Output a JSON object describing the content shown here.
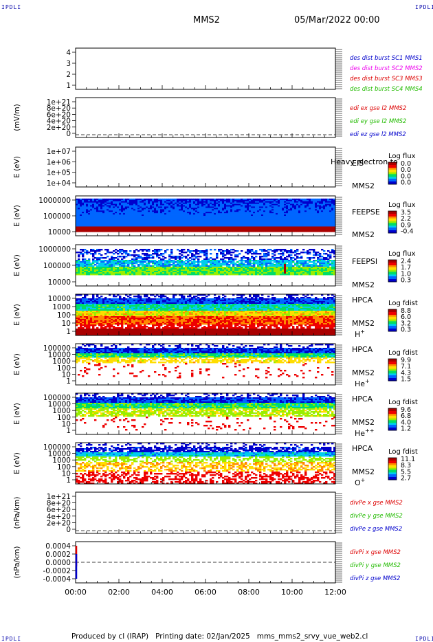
{
  "corners": {
    "top_left": "IPDLI",
    "top_right": "IPDLI",
    "bottom_left": "IPDLI",
    "bottom_right": "IPDLI"
  },
  "header": {
    "mission": "MMS2",
    "date": "05/Mar/2022 00:00"
  },
  "footer": {
    "produced_by": "Produced by cl (IRAP)",
    "printing_date": "Printing date: 02/Jan/2025",
    "script": "mms_mms2_srvy_vue_web2.cl"
  },
  "x_axis": {
    "ticks": [
      "00:00",
      "02:00",
      "04:00",
      "06:00",
      "08:00",
      "10:00",
      "12:00"
    ]
  },
  "colors": {
    "blue": "#0000cc",
    "magenta": "#ee00ee",
    "red": "#dd0000",
    "green": "#22bb00",
    "rainbow": [
      "#0000cc",
      "#0066ff",
      "#00ccee",
      "#00dd66",
      "#99ee00",
      "#ffdd00",
      "#ff8800",
      "#ee0000",
      "#aa0000"
    ]
  },
  "chart_data": [
    {
      "type": "line",
      "id": "des",
      "yticks": [
        "4",
        "3",
        "2",
        "1"
      ],
      "ylabel": "",
      "legend": [
        {
          "label": "des dist burst SC1 MMS1",
          "color": "#0000cc"
        },
        {
          "label": "des dist burst SC2 MMS2",
          "color": "#ee00ee"
        },
        {
          "label": "des dist burst SC3 MMS3",
          "color": "#dd0000"
        },
        {
          "label": "des dist burst SC4 MMS4",
          "color": "#22bb00"
        }
      ],
      "series": []
    },
    {
      "type": "line",
      "id": "edi",
      "yticks": [
        "1e+21",
        "8e+20",
        "6e+20",
        "4e+20",
        "2e+20",
        "0"
      ],
      "ylabel": "(mV/m)",
      "zero_line": true,
      "legend": [
        {
          "label": "edi ex gse l2 MMS2",
          "color": "#dd0000"
        },
        {
          "label": "edi ey gse l2 MMS2",
          "color": "#22bb00"
        },
        {
          "label": "edi ez gse l2 MMS2",
          "color": "#0000cc"
        }
      ],
      "series": []
    },
    {
      "type": "heatmap",
      "id": "eis",
      "yticks": [
        "1e+07",
        "1e+06",
        "1e+05",
        "1e+04"
      ],
      "ylabel": "E (eV)",
      "instrument": "EIS",
      "spacecraft": "MMS2",
      "species": "",
      "overlay_text": "Heavy electron to",
      "cbar_title": "Log flux",
      "cbar_ticks": [
        "0.0",
        "0.0",
        "0.0",
        "0.0"
      ],
      "pattern": "empty"
    },
    {
      "type": "heatmap",
      "id": "feepse",
      "yticks": [
        "1000000",
        "100000",
        "10000"
      ],
      "ylabel": "E (eV)",
      "instrument": "FEEPSE",
      "spacecraft": "MMS2",
      "species": "",
      "cbar_title": "Log flux",
      "cbar_ticks": [
        "3.5",
        "2.2",
        "0.9",
        "-0.4"
      ],
      "pattern": "feepse"
    },
    {
      "type": "heatmap",
      "id": "feepsi",
      "yticks": [
        "1000000",
        "100000",
        "10000"
      ],
      "ylabel": "E (eV)",
      "instrument": "FEEPSI",
      "spacecraft": "MMS2",
      "species": "",
      "cbar_title": "Log flux",
      "cbar_ticks": [
        "2.4",
        "1.7",
        "1.0",
        "0.3"
      ],
      "pattern": "feepsi"
    },
    {
      "type": "heatmap",
      "id": "hpca-h",
      "yticks": [
        "10000",
        "1000",
        "100",
        "10",
        "1"
      ],
      "ylabel": "E (eV)",
      "instrument": "HPCA",
      "spacecraft": "MMS2",
      "species": "H",
      "species_charge": "+",
      "cbar_title": "Log fdist",
      "cbar_ticks": [
        "8.8",
        "6.0",
        "3.2",
        "0.3"
      ],
      "pattern": "hpca_h"
    },
    {
      "type": "heatmap",
      "id": "hpca-he",
      "yticks": [
        "100000",
        "10000",
        "1000",
        "100",
        "10",
        "1"
      ],
      "ylabel": "E (eV)",
      "instrument": "HPCA",
      "spacecraft": "MMS2",
      "species": "He",
      "species_charge": "+",
      "cbar_title": "Log fdist",
      "cbar_ticks": [
        "9.9",
        "7.1",
        "4.3",
        "1.5"
      ],
      "pattern": "hpca_he"
    },
    {
      "type": "heatmap",
      "id": "hpca-hepp",
      "yticks": [
        "100000",
        "10000",
        "1000",
        "100",
        "10",
        "1"
      ],
      "ylabel": "E (eV)",
      "instrument": "HPCA",
      "spacecraft": "MMS2",
      "species": "He",
      "species_charge": "++",
      "cbar_title": "Log fdist",
      "cbar_ticks": [
        "9.6",
        "6.8",
        "4.0",
        "1.2"
      ],
      "pattern": "hpca_hepp"
    },
    {
      "type": "heatmap",
      "id": "hpca-o",
      "yticks": [
        "100000",
        "10000",
        "1000",
        "100",
        "10",
        "1"
      ],
      "ylabel": "E (eV)",
      "instrument": "HPCA",
      "spacecraft": "MMS2",
      "species": "O",
      "species_charge": "+",
      "cbar_title": "Log fdist",
      "cbar_ticks": [
        "11.1",
        "8.3",
        "5.5",
        "2.7"
      ],
      "pattern": "hpca_o"
    },
    {
      "type": "line",
      "id": "divpe",
      "yticks": [
        "1e+21",
        "8e+20",
        "6e+20",
        "4e+20",
        "2e+20",
        "0"
      ],
      "ylabel": "(nPa/km)",
      "zero_line": true,
      "legend": [
        {
          "label": "divPe x gse MMS2",
          "color": "#dd0000"
        },
        {
          "label": "divPe y gse MMS2",
          "color": "#22bb00"
        },
        {
          "label": "divPe z gse MMS2",
          "color": "#0000cc"
        }
      ],
      "series": []
    },
    {
      "type": "line",
      "id": "divpi",
      "yticks": [
        "0.0004",
        "0.0002",
        "0.0000",
        "-0.0002",
        "-0.0004"
      ],
      "ylim": [
        -0.0005,
        0.0005
      ],
      "ylabel": "(nPa/km)",
      "zero_line": true,
      "legend": [
        {
          "label": "divPi x gse MMS2",
          "color": "#dd0000"
        },
        {
          "label": "divPi y gse MMS2",
          "color": "#22bb00"
        },
        {
          "label": "divPi z gse MMS2",
          "color": "#0000cc"
        }
      ],
      "series": [
        {
          "name": "divPi x gse MMS2",
          "color": "#dd0000",
          "x": [
            "00:00",
            "00:00",
            "00:00"
          ],
          "y": [
            0.0004,
            0.0001,
            -0.0001
          ]
        },
        {
          "name": "divPi z gse MMS2",
          "color": "#0000cc",
          "x": [
            "00:00",
            "00:00",
            "00:00"
          ],
          "y": [
            0.0002,
            -0.0002,
            -0.0004
          ]
        }
      ]
    }
  ]
}
